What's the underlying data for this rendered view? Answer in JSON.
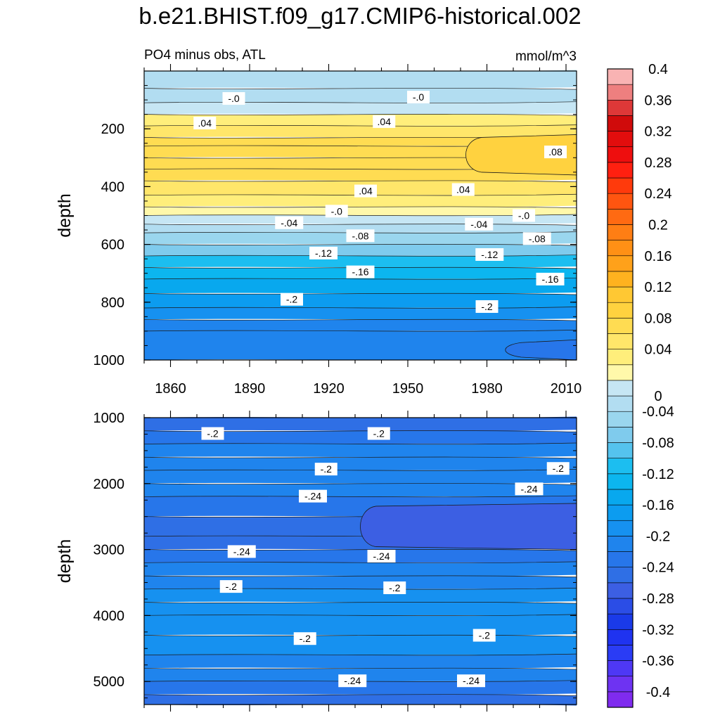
{
  "title": "b.e21.BHIST.f09_g17.CMIP6-historical.002",
  "panel_top": {
    "left_label": "PO4 minus obs, ATL",
    "right_label": "mmol/m^3"
  },
  "chart_data": [
    {
      "type": "heatmap",
      "title": "PO4 minus obs, ATL",
      "units": "mmol/m^3",
      "xlabel": "",
      "ylabel": "depth",
      "xlim": [
        1850,
        2014
      ],
      "ylim": [
        0,
        1000
      ],
      "y_inverted": true,
      "x_ticks": [
        1860,
        1890,
        1920,
        1950,
        1980,
        2010
      ],
      "y_ticks": [
        200,
        400,
        600,
        800,
        1000
      ],
      "depth_levels": [
        0,
        60,
        110,
        150,
        190,
        230,
        260,
        300,
        340,
        380,
        430,
        470,
        500,
        530,
        560,
        600,
        640,
        680,
        720,
        770,
        820,
        860,
        900,
        1000
      ],
      "profile_values": [
        -0.04,
        -0.04,
        -0.02,
        0.02,
        0.04,
        0.06,
        0.07,
        0.07,
        0.06,
        0.05,
        0.03,
        0.01,
        -0.02,
        -0.04,
        -0.06,
        -0.08,
        -0.11,
        -0.13,
        -0.16,
        -0.18,
        -0.2,
        -0.21,
        -0.22,
        -0.23
      ],
      "features": [
        {
          "kind": "max",
          "label": "0.08",
          "x_start": 1970,
          "x_end": 2014,
          "depth_top": 220,
          "depth_bottom": 360,
          "value": 0.08
        },
        {
          "kind": "contour",
          "label": "-0.24",
          "x_start": 1985,
          "x_end": 2014,
          "depth_top": 930,
          "depth_bottom": 1000,
          "value": -0.24
        }
      ],
      "contour_labels": [
        {
          "text": "-.0",
          "x": 1884,
          "depth": 95
        },
        {
          "text": "-.0",
          "x": 1954,
          "depth": 90
        },
        {
          "text": ".04",
          "x": 1873,
          "depth": 180
        },
        {
          "text": ".04",
          "x": 1941,
          "depth": 175
        },
        {
          "text": ".08",
          "x": 2006,
          "depth": 280
        },
        {
          "text": ".04",
          "x": 1934,
          "depth": 415
        },
        {
          "text": ".04",
          "x": 1971,
          "depth": 410
        },
        {
          "text": "-.0",
          "x": 1923,
          "depth": 485
        },
        {
          "text": "-.0",
          "x": 1994,
          "depth": 500
        },
        {
          "text": "-.04",
          "x": 1905,
          "depth": 525
        },
        {
          "text": "-.04",
          "x": 1977,
          "depth": 530
        },
        {
          "text": "-.08",
          "x": 1932,
          "depth": 570
        },
        {
          "text": "-.08",
          "x": 1999,
          "depth": 580
        },
        {
          "text": "-.12",
          "x": 1918,
          "depth": 630
        },
        {
          "text": "-.12",
          "x": 1981,
          "depth": 635
        },
        {
          "text": "-.16",
          "x": 1932,
          "depth": 695
        },
        {
          "text": "-.16",
          "x": 2004,
          "depth": 720
        },
        {
          "text": "-.2",
          "x": 1906,
          "depth": 790
        },
        {
          "text": "-.2",
          "x": 1980,
          "depth": 815
        }
      ]
    },
    {
      "type": "heatmap",
      "title": "",
      "xlabel": "",
      "ylabel": "depth",
      "xlim": [
        1850,
        2014
      ],
      "ylim": [
        1000,
        5350
      ],
      "y_inverted": true,
      "y_ticks": [
        1000,
        2000,
        3000,
        4000,
        5000
      ],
      "depth_levels": [
        1000,
        1200,
        1400,
        1600,
        1800,
        2000,
        2200,
        2500,
        2800,
        3000,
        3200,
        3400,
        3600,
        3800,
        4000,
        4300,
        4600,
        4800,
        5000,
        5200,
        5350
      ],
      "profile_values": [
        -0.26,
        -0.24,
        -0.22,
        -0.21,
        -0.21,
        -0.22,
        -0.24,
        -0.25,
        -0.25,
        -0.24,
        -0.22,
        -0.21,
        -0.2,
        -0.2,
        -0.2,
        -0.2,
        -0.21,
        -0.22,
        -0.24,
        -0.25,
        -0.26
      ],
      "features": [
        {
          "kind": "min",
          "label": "-0.28",
          "x_start": 1930,
          "x_end": 2014,
          "depth_top": 2300,
          "depth_bottom": 3000,
          "value": -0.28
        }
      ],
      "contour_labels": [
        {
          "text": "-.2",
          "x": 1876,
          "depth": 1240
        },
        {
          "text": "-.2",
          "x": 1939,
          "depth": 1240
        },
        {
          "text": "-.2",
          "x": 1919,
          "depth": 1780
        },
        {
          "text": "-.2",
          "x": 2007,
          "depth": 1770
        },
        {
          "text": "-.24",
          "x": 1914,
          "depth": 2190
        },
        {
          "text": "-.24",
          "x": 1996,
          "depth": 2080
        },
        {
          "text": "-.24",
          "x": 1887,
          "depth": 3030
        },
        {
          "text": "-.24",
          "x": 1940,
          "depth": 3100
        },
        {
          "text": "-.2",
          "x": 1883,
          "depth": 3560
        },
        {
          "text": "-.2",
          "x": 1945,
          "depth": 3580
        },
        {
          "text": "-.2",
          "x": 1911,
          "depth": 4350
        },
        {
          "text": "-.2",
          "x": 1979,
          "depth": 4300
        },
        {
          "text": "-.24",
          "x": 1929,
          "depth": 4990
        },
        {
          "text": "-.24",
          "x": 1974,
          "depth": 4990
        }
      ]
    }
  ],
  "colorbar": {
    "levels": [
      -0.4,
      -0.38,
      -0.36,
      -0.34,
      -0.32,
      -0.3,
      -0.28,
      -0.26,
      -0.24,
      -0.22,
      -0.2,
      -0.18,
      -0.16,
      -0.14,
      -0.12,
      -0.1,
      -0.08,
      -0.06,
      -0.04,
      -0.02,
      0,
      0.02,
      0.04,
      0.06,
      0.08,
      0.1,
      0.12,
      0.14,
      0.16,
      0.18,
      0.2,
      0.22,
      0.24,
      0.26,
      0.28,
      0.3,
      0.32,
      0.34,
      0.36,
      0.38,
      0.4
    ],
    "colors": [
      "#7f2bef",
      "#6e33f2",
      "#4e38f5",
      "#2a3cf5",
      "#1f33f0",
      "#1a3ae8",
      "#2b4de6",
      "#3c5fe3",
      "#2f6fe5",
      "#2776ea",
      "#1f84ed",
      "#1691f0",
      "#0c9cf0",
      "#08a8ee",
      "#0cb6ef",
      "#1cbef0",
      "#55c3ee",
      "#7fcbed",
      "#9ad6ee",
      "#b2ddf1",
      "#c6e6f4",
      "#fff8aa",
      "#ffee7b",
      "#ffe66a",
      "#ffdc52",
      "#ffd23f",
      "#ffc833",
      "#ffb21f",
      "#ffa11a",
      "#ff9015",
      "#ff7e14",
      "#ff6a12",
      "#ff5510",
      "#ff3a0c",
      "#ff2010",
      "#ee0e0e",
      "#e20d0d",
      "#d00b0b",
      "#de3838",
      "#ee7f7f",
      "#f9b3b3"
    ],
    "tick_labels": [
      "0.4",
      "0.36",
      "0.32",
      "0.28",
      "0.24",
      "0.2",
      "0.16",
      "0.12",
      "0.08",
      "0.04",
      "0",
      "-0.04",
      "-0.08",
      "-0.12",
      "-0.16",
      "-0.2",
      "-0.24",
      "-0.28",
      "-0.32",
      "-0.36",
      "-0.4"
    ]
  }
}
